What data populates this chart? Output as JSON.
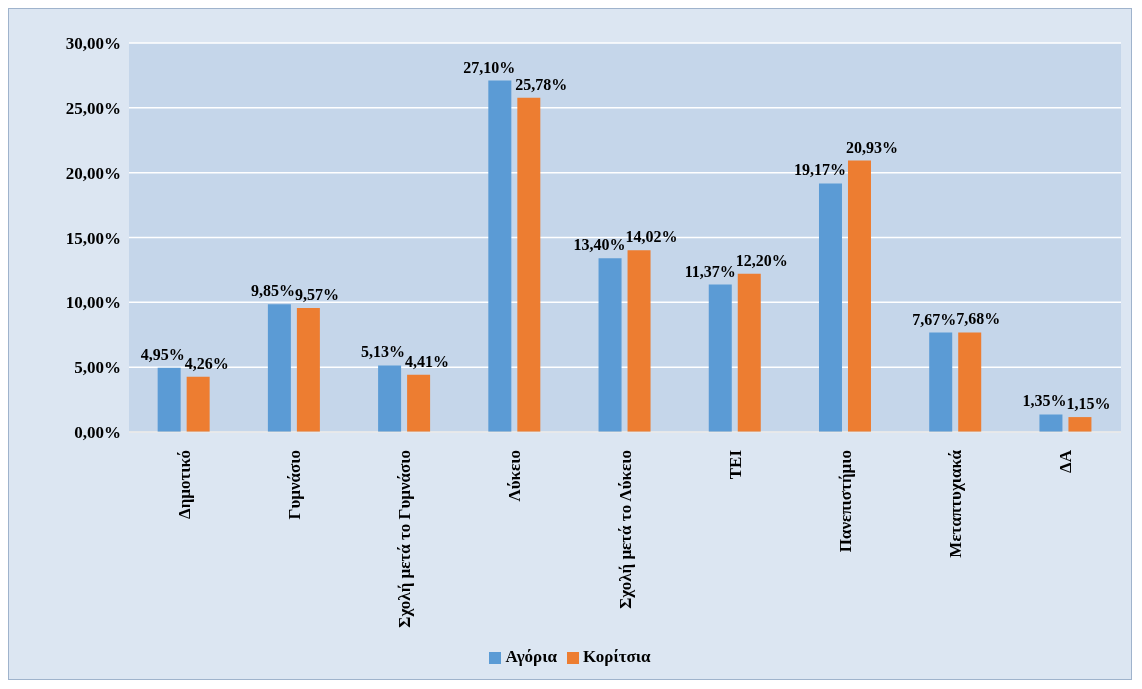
{
  "chart_data": {
    "type": "bar",
    "categories": [
      "Δημοτικό",
      "Γυμνάσιο",
      "Σχολή μετά το Γυμνάσιο",
      "Λύκειο",
      "Σχολή μετά το Λύκειο",
      "ΤΕΙ",
      "Πανεπιστήμιο",
      "Μεταπτυχιακά",
      "ΔΑ"
    ],
    "series": [
      {
        "name": "Αγόρια",
        "color": "#5b9bd5",
        "values": [
          4.95,
          9.85,
          5.13,
          27.1,
          13.4,
          11.37,
          19.17,
          7.67,
          1.35
        ],
        "value_labels": [
          "4,95%",
          "9,85%",
          "5,13%",
          "27,10%",
          "13,40%",
          "11,37%",
          "19,17%",
          "7,67%",
          "1,35%"
        ]
      },
      {
        "name": "Κορίτσια",
        "color": "#ed7d31",
        "values": [
          4.26,
          9.57,
          4.41,
          25.78,
          14.02,
          12.2,
          20.93,
          7.68,
          1.15
        ],
        "value_labels": [
          "4,26%",
          "9,57%",
          "4,41%",
          "25,78%",
          "14,02%",
          "12,20%",
          "20,93%",
          "7,68%",
          "1,15%"
        ]
      }
    ],
    "ylim": [
      0,
      30
    ],
    "yticks": [
      {
        "value": 0,
        "label": "0,00%"
      },
      {
        "value": 5,
        "label": "5,00%"
      },
      {
        "value": 10,
        "label": "10,00%"
      },
      {
        "value": 15,
        "label": "15,00%"
      },
      {
        "value": 20,
        "label": "20,00%"
      },
      {
        "value": 25,
        "label": "25,00%"
      },
      {
        "value": 30,
        "label": "30,00%"
      }
    ],
    "grid": "y",
    "legend": "bottom"
  }
}
